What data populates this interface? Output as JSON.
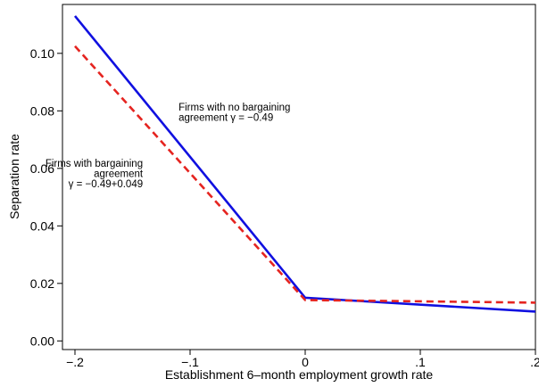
{
  "chart_data": {
    "type": "line",
    "xlabel": "Establishment 6–month employment growth rate",
    "ylabel": "Separation rate",
    "xlim": [
      -0.2,
      0.2
    ],
    "ylim": [
      -0.003,
      0.117
    ],
    "x_ticks": [
      -0.2,
      -0.1,
      0,
      0.1,
      0.2
    ],
    "x_tick_labels": [
      "−.2",
      "−.1",
      "0",
      ".1",
      ".2"
    ],
    "y_ticks": [
      0,
      0.02,
      0.04,
      0.06,
      0.08,
      0.1
    ],
    "y_tick_labels": [
      "0.00",
      "0.02",
      "0.04",
      "0.06",
      "0.08",
      "0.10"
    ],
    "grid": false,
    "legend": "none",
    "series": [
      {
        "color": "#1010e0",
        "style": "solid",
        "x": [
          -0.2,
          0,
          0.2
        ],
        "y": [
          0.113,
          0.015,
          0.0102
        ]
      },
      {
        "color": "#e52420",
        "style": "dashed",
        "x": [
          -0.2,
          0,
          0.2
        ],
        "y": [
          0.1025,
          0.0142,
          0.0133
        ]
      }
    ],
    "annotations": [
      {
        "lines": [
          "Firms with no bargaining",
          "agreement γ = −0.49"
        ],
        "align": "left",
        "x": -0.11,
        "y": 0.0765
      },
      {
        "lines": [
          "Firms with bargaining",
          "agreement",
          "γ = −0.49+0.049"
        ],
        "align": "right",
        "x": -0.141,
        "y": 0.0535
      }
    ]
  }
}
